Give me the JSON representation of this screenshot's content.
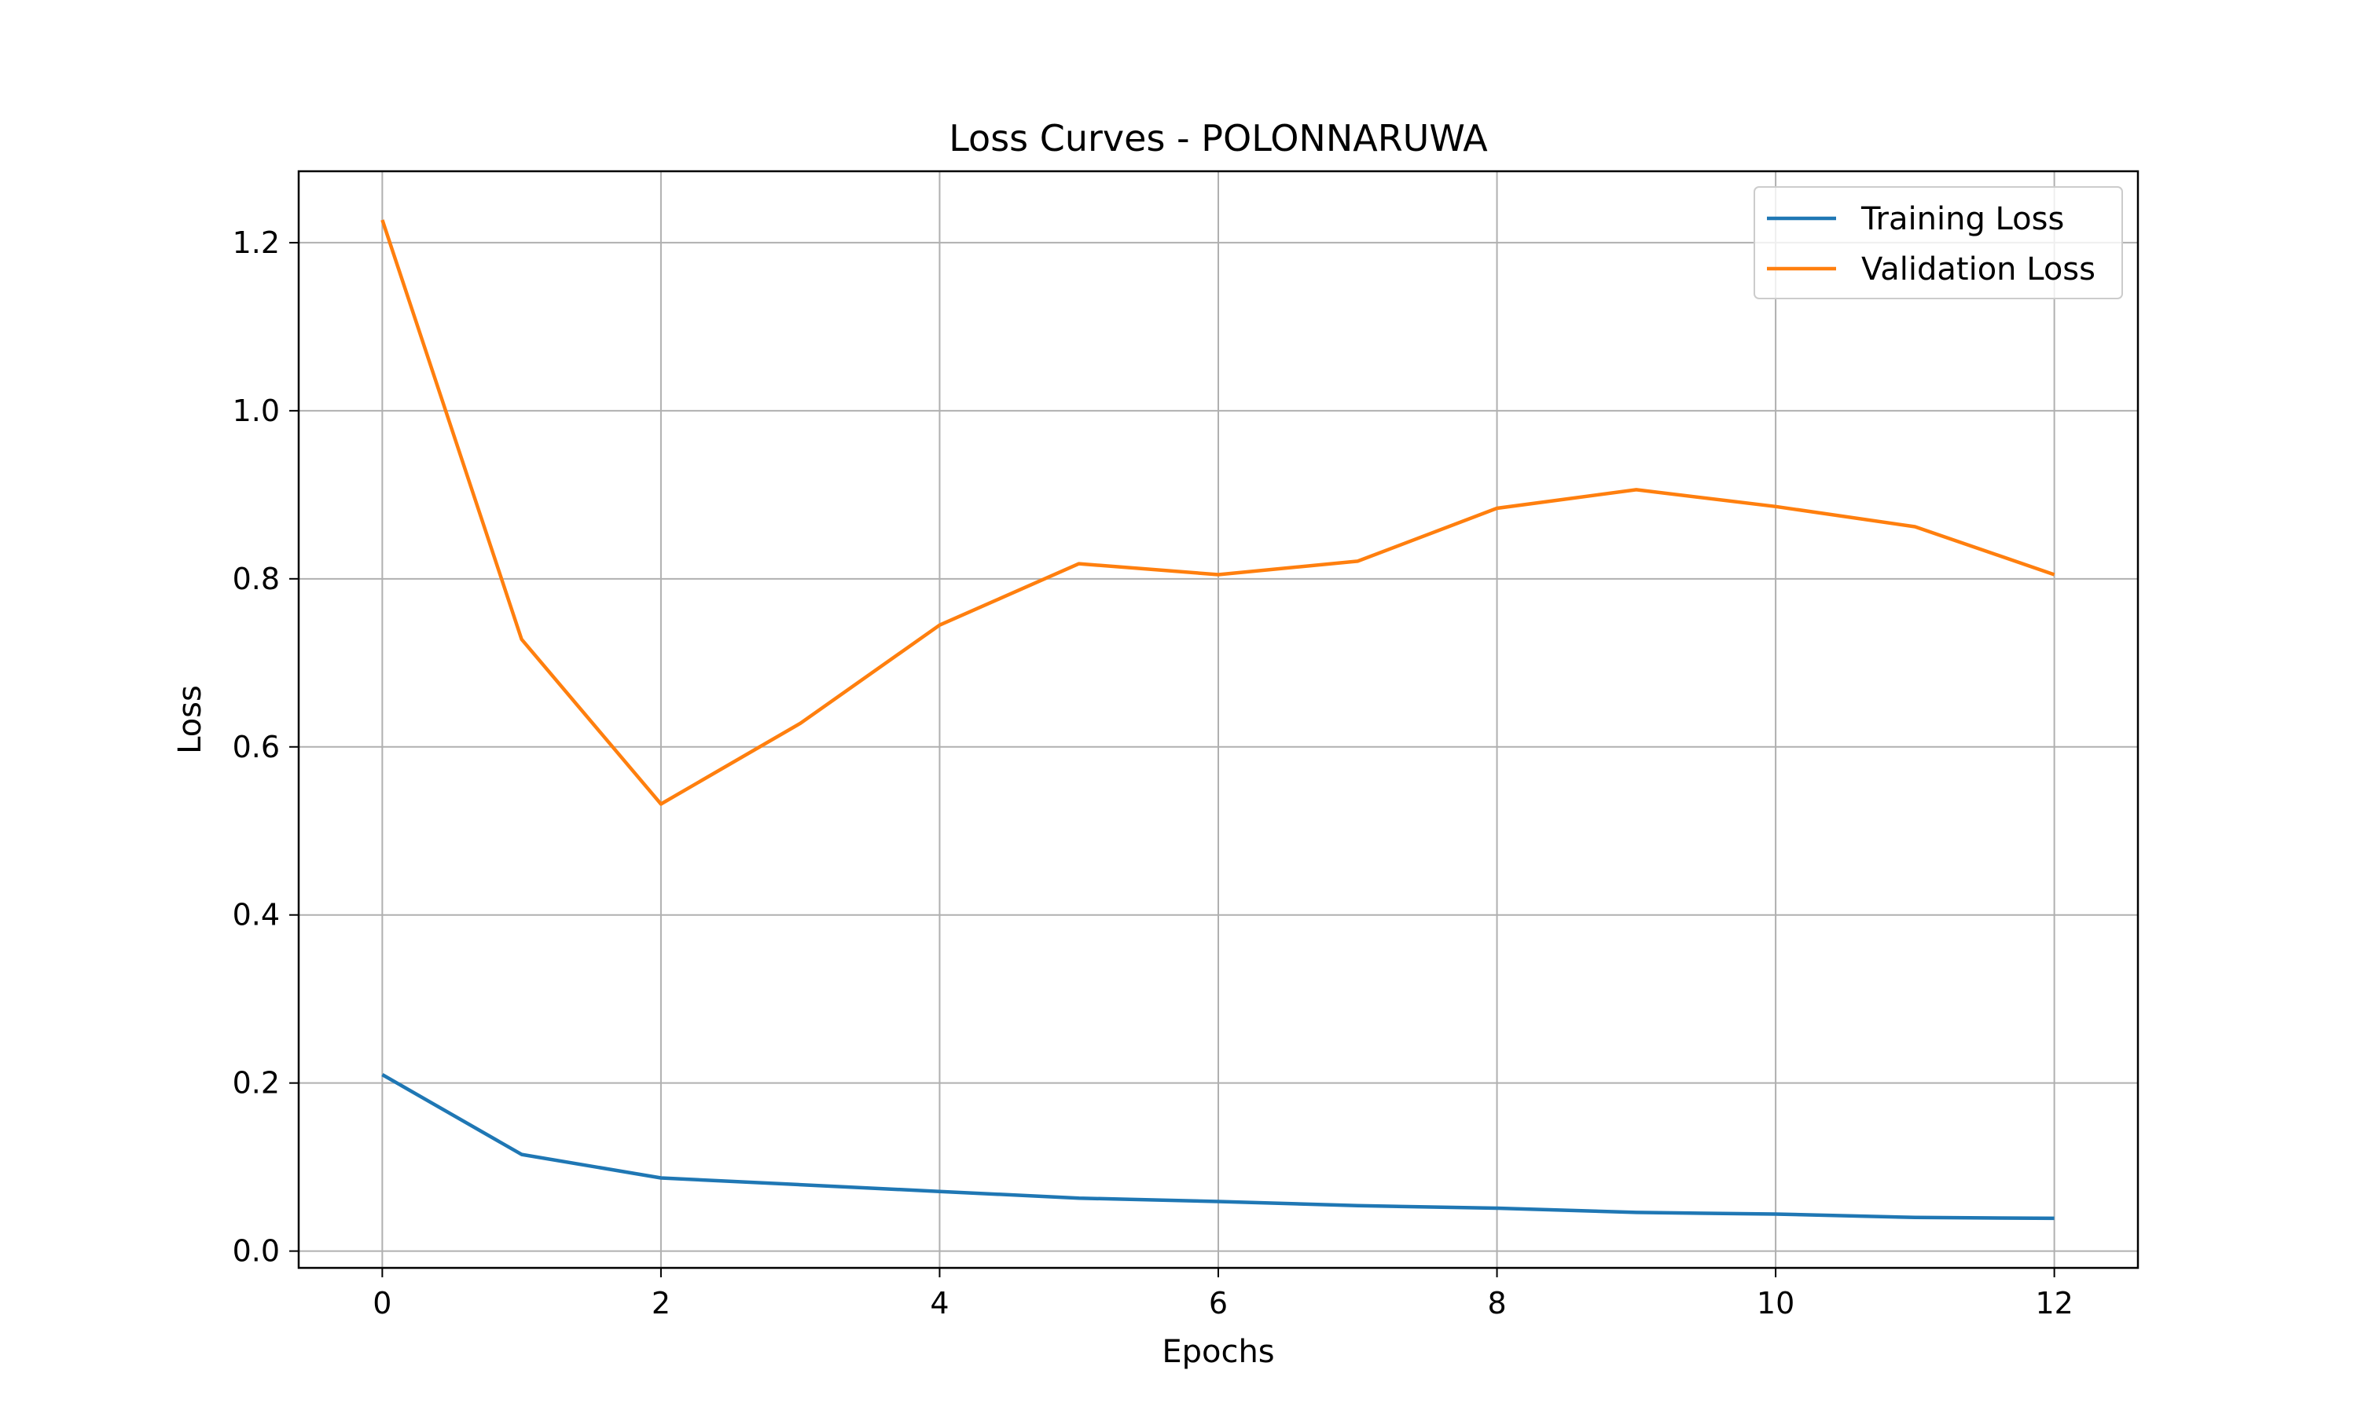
{
  "chart_data": {
    "type": "line",
    "title": "Loss Curves - POLONNARUWA",
    "xlabel": "Epochs",
    "ylabel": "Loss",
    "xlim": [
      -0.6,
      12.6
    ],
    "ylim": [
      -0.02,
      1.285
    ],
    "x_ticks": [
      0,
      2,
      4,
      6,
      8,
      10,
      12
    ],
    "y_ticks": [
      0.0,
      0.2,
      0.4,
      0.6,
      0.8,
      1.0,
      1.2
    ],
    "y_tick_labels": [
      "0.0",
      "0.2",
      "0.4",
      "0.6",
      "0.8",
      "1.0",
      "1.2"
    ],
    "grid": true,
    "legend_position": "top-right",
    "x": [
      0,
      1,
      2,
      3,
      4,
      5,
      6,
      7,
      8,
      9,
      10,
      11,
      12
    ],
    "series": [
      {
        "name": "Training Loss",
        "color": "#1f77b4",
        "values": [
          0.21,
          0.115,
          0.087,
          0.079,
          0.071,
          0.063,
          0.059,
          0.054,
          0.051,
          0.046,
          0.044,
          0.04,
          0.039
        ]
      },
      {
        "name": "Validation Loss",
        "color": "#ff7f0e",
        "values": [
          1.227,
          0.728,
          0.532,
          0.628,
          0.745,
          0.818,
          0.805,
          0.821,
          0.884,
          0.906,
          0.886,
          0.862,
          0.805
        ]
      }
    ]
  }
}
